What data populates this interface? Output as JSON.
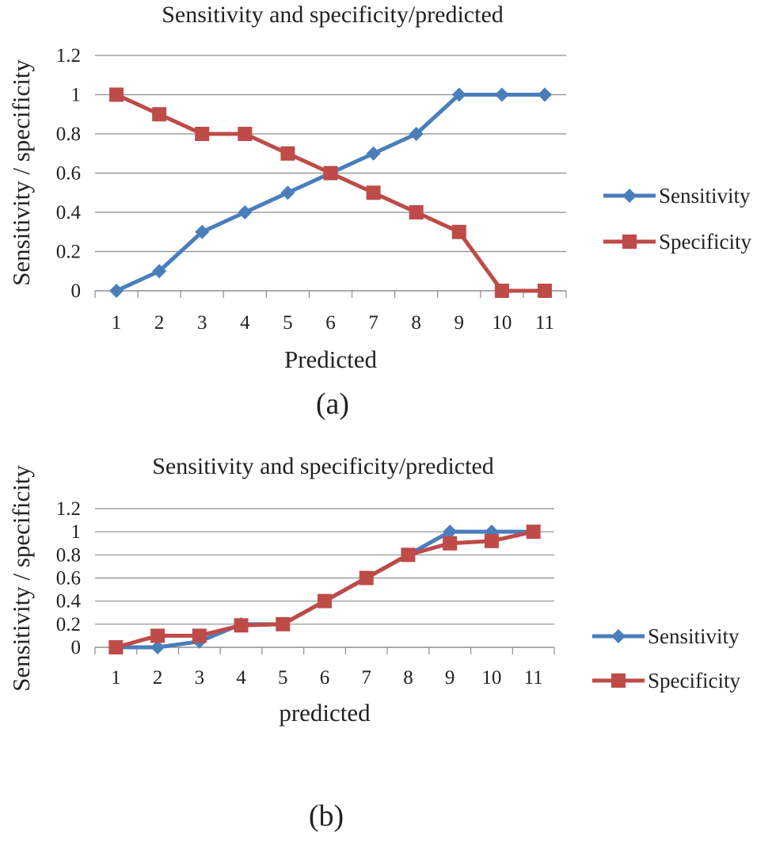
{
  "chart_data": [
    {
      "type": "line",
      "title": "Sensitivity and specificity/predicted",
      "xlabel": "Predicted",
      "ylabel": "Sensitivity / specificity",
      "caption": "(a)",
      "categories": [
        "1",
        "2",
        "3",
        "4",
        "5",
        "6",
        "7",
        "8",
        "9",
        "10",
        "11"
      ],
      "y_ticks": [
        "0",
        "0.2",
        "0.4",
        "0.6",
        "0.8",
        "1",
        "1.2"
      ],
      "ylim": [
        0,
        1.2
      ],
      "grid": true,
      "legend": "right",
      "series": [
        {
          "name": "Sensitivity",
          "color": "#4a7ebb",
          "marker": "diamond",
          "values": [
            0,
            0.1,
            0.3,
            0.4,
            0.5,
            0.6,
            0.7,
            0.8,
            1,
            1,
            1
          ]
        },
        {
          "name": "Specificity",
          "color": "#be4b48",
          "marker": "square",
          "values": [
            1,
            0.9,
            0.8,
            0.8,
            0.7,
            0.6,
            0.5,
            0.4,
            0.3,
            0,
            0
          ]
        }
      ]
    },
    {
      "type": "line",
      "title": "Sensitivity and specificity/predicted",
      "xlabel": "predicted",
      "ylabel": "Sensitivity / specificity",
      "caption": "(b)",
      "categories": [
        "1",
        "2",
        "3",
        "4",
        "5",
        "6",
        "7",
        "8",
        "9",
        "10",
        "11"
      ],
      "y_ticks": [
        "0",
        "0.2",
        "0.4",
        "0.6",
        "0.8",
        "1",
        "1.2"
      ],
      "ylim": [
        0,
        1.2
      ],
      "grid": true,
      "legend": "right",
      "series": [
        {
          "name": "Sensitivity",
          "color": "#4a7ebb",
          "marker": "diamond",
          "values": [
            0,
            0,
            0.05,
            0.2,
            0.2,
            0.4,
            0.6,
            0.8,
            1,
            1,
            1
          ]
        },
        {
          "name": "Specificity",
          "color": "#be4b48",
          "marker": "square",
          "values": [
            0,
            0.1,
            0.1,
            0.19,
            0.2,
            0.4,
            0.6,
            0.8,
            0.9,
            0.92,
            1
          ]
        }
      ]
    }
  ]
}
